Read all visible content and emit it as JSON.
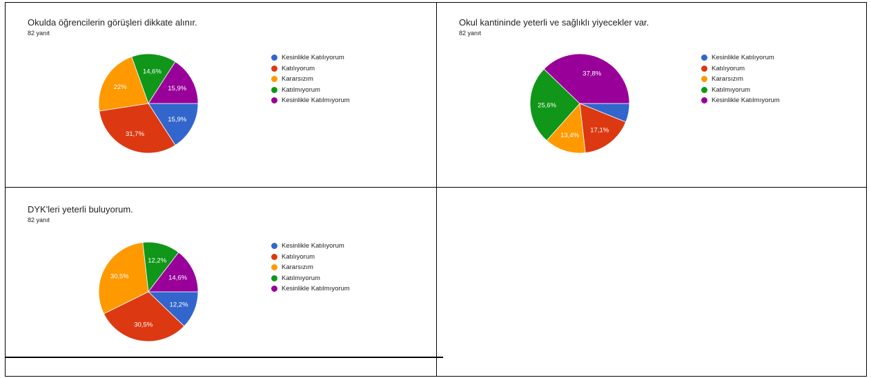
{
  "colors": {
    "Kesinlikle Katılıyorum": "#3366cc",
    "Katılıyorum": "#dc3912",
    "Kararsızım": "#ff9900",
    "Katılmıyorum": "#109618",
    "Kesinlikle Katılmıyorum": "#990099"
  },
  "chart_data": [
    {
      "type": "pie",
      "title": "Okulda öğrencilerin görüşleri dikkate alınır.",
      "subtitle": "82 yanıt",
      "legend_position": "right",
      "categories": [
        "Kesinlikle Katılıyorum",
        "Katılıyorum",
        "Kararsızım",
        "Katılmıyorum",
        "Kesinlikle Katılmıyorum"
      ],
      "values": [
        15.9,
        31.7,
        22,
        14.6,
        15.9
      ],
      "labels": [
        "15,9%",
        "31,7%",
        "22%",
        "14,6%",
        "15,9%"
      ]
    },
    {
      "type": "pie",
      "title": "Okul kantininde yeterli ve sağlıklı yiyecekler var.",
      "subtitle": "82 yanıt",
      "legend_position": "right",
      "categories": [
        "Kesinlikle Katılıyorum",
        "Katılıyorum",
        "Kararsızım",
        "Katılmıyorum",
        "Kesinlikle Katılmıyorum"
      ],
      "values": [
        6.1,
        17.1,
        13.4,
        25.6,
        37.8
      ],
      "labels": [
        "",
        "17,1%",
        "13,4%",
        "25,6%",
        "37,8%"
      ]
    },
    {
      "type": "pie",
      "title": "DYK'leri yeterli buluyorum.",
      "subtitle": "82 yanıt",
      "legend_position": "right",
      "categories": [
        "Kesinlikle Katılıyorum",
        "Katılıyorum",
        "Kararsızım",
        "Katılmıyorum",
        "Kesinlikle Katılmıyorum"
      ],
      "values": [
        12.2,
        30.5,
        30.5,
        12.2,
        14.6
      ],
      "labels": [
        "12,2%",
        "30,5%",
        "30,5%",
        "12,2%",
        "14,6%"
      ]
    }
  ]
}
